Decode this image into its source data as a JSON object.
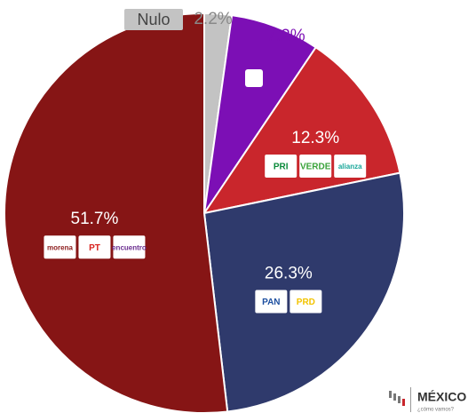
{
  "chart_data": {
    "type": "pie",
    "categories": [
      "Nulo",
      null,
      null,
      null,
      null
    ],
    "values": [
      2.2,
      7.2,
      12.3,
      26.3,
      51.7
    ],
    "value_labels": [
      "2.2%",
      "7.2%",
      "12.3%",
      "26.3%",
      "51.7%"
    ],
    "colors": [
      "#c3c3c3",
      "#7c0fb5",
      "#c9262c",
      "#2f3a6c",
      "#861515"
    ],
    "logos": [
      null,
      null,
      [
        "PRI",
        "VERDE",
        "alianza"
      ],
      [
        "PAN",
        "PRD"
      ],
      [
        "morena",
        "PT",
        "encuentro"
      ]
    ]
  },
  "watermark": {
    "title": "MÉXICO",
    "subtitle": "¿cómo vamos?"
  }
}
